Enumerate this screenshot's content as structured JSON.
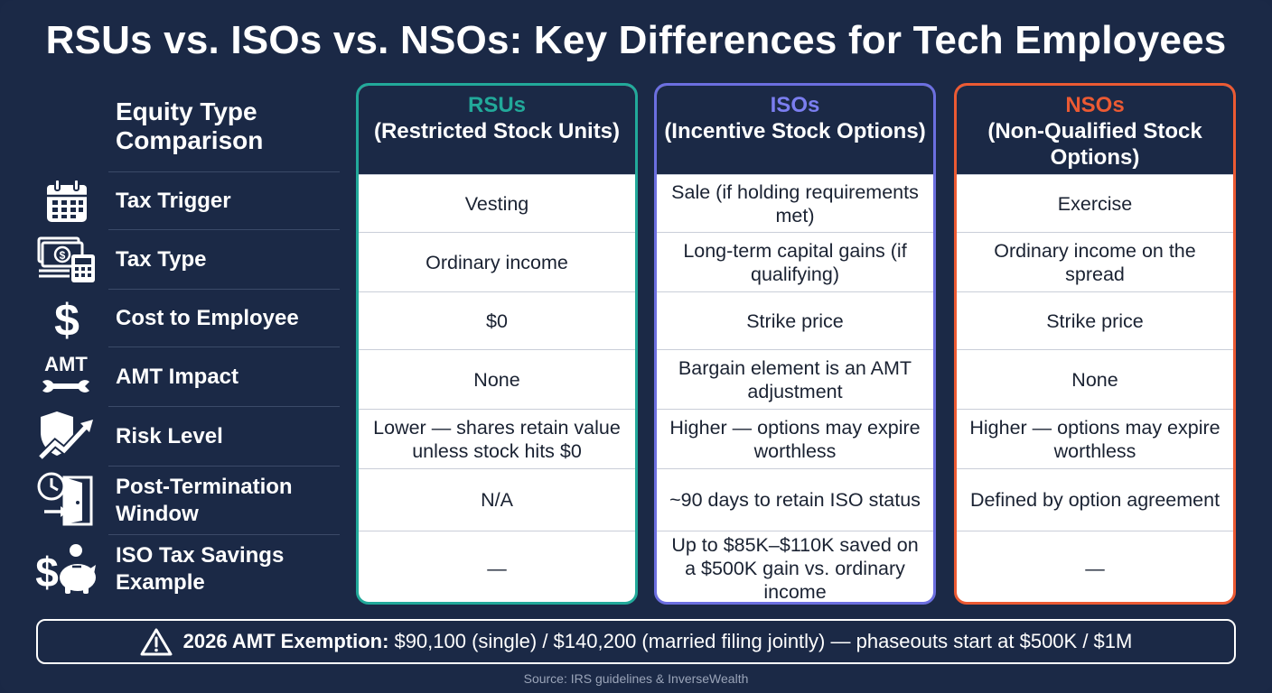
{
  "title": "RSUs vs. ISOs vs. NSOs: Key Differences for Tech Employees",
  "left_header": "Equity Type Comparison",
  "rows": [
    {
      "label": "Tax Trigger",
      "icon": "calendar-icon"
    },
    {
      "label": "Tax Type",
      "icon": "money-calculator-icon"
    },
    {
      "label": "Cost to Employee",
      "icon": "dollar-sign-icon"
    },
    {
      "label": "AMT Impact",
      "icon": "amt-wrench-icon",
      "icon_text": "AMT"
    },
    {
      "label": "Risk Level",
      "icon": "shield-trend-icon"
    },
    {
      "label": "Post-Termination Window",
      "icon": "clock-door-icon"
    },
    {
      "label": "ISO Tax Savings Example",
      "icon": "piggy-bank-icon"
    }
  ],
  "columns": [
    {
      "abbr": "RSUs",
      "full": "(Restricted Stock Units)",
      "color": "#22a99a",
      "cells": [
        "Vesting",
        "Ordinary income",
        "$0",
        "None",
        "Lower — shares retain value unless stock hits $0",
        "N/A",
        "—"
      ]
    },
    {
      "abbr": "ISOs",
      "full": "(Incentive Stock Options)",
      "color": "#6c6fe0",
      "cells": [
        "Sale (if holding requirements met)",
        "Long-term capital gains (if qualifying)",
        "Strike price",
        "Bargain element is an AMT adjustment",
        "Higher — options may expire worthless",
        "~90 days to retain ISO status",
        "Up to $85K–$110K saved on a $500K gain vs. ordinary income"
      ]
    },
    {
      "abbr": "NSOs",
      "full": "(Non-Qualified Stock Options)",
      "color": "#ec5a33",
      "cells": [
        "Exercise",
        "Ordinary income on the spread",
        "Strike price",
        "None",
        "Higher — options may expire worthless",
        "Defined by option agreement",
        "—"
      ]
    }
  ],
  "banner": {
    "icon": "warning-icon",
    "bold": "2026 AMT Exemption:",
    "text": "$90,100 (single) / $140,200 (married filing jointly) — phaseouts start at $500K / $1M"
  },
  "source": "Source: IRS guidelines & InverseWealth"
}
